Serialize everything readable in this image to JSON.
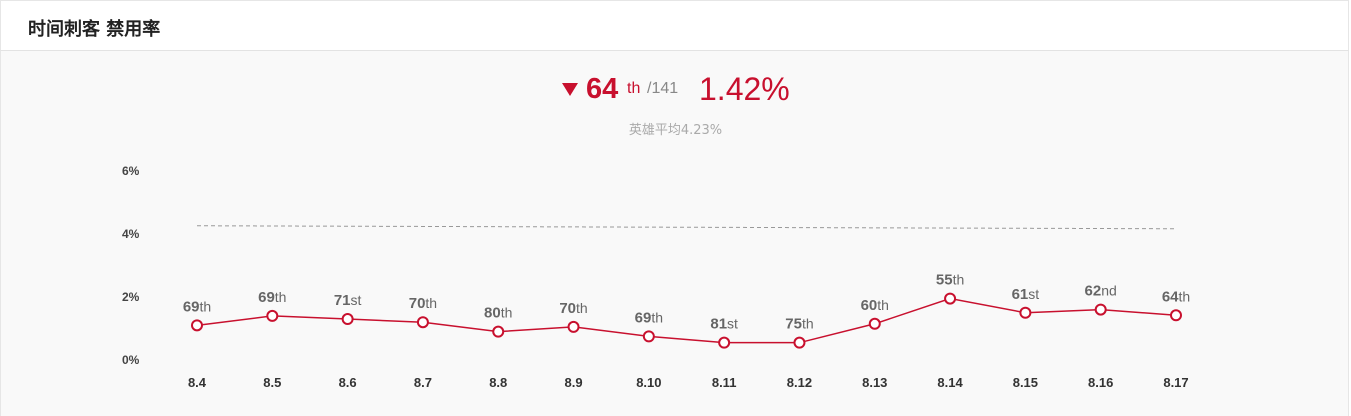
{
  "header": {
    "title": "时间刺客 禁用率"
  },
  "summary": {
    "trend": "down",
    "rank": "64",
    "rank_suffix": "th",
    "rank_total": "/141",
    "rate": "1.42%",
    "average_label": "英雄平均4.23%"
  },
  "colors": {
    "accent": "#c8102e",
    "average_line": "#999999"
  },
  "chart_data": {
    "type": "line",
    "title": "",
    "xlabel": "",
    "ylabel": "",
    "categories": [
      "8.4",
      "8.5",
      "8.6",
      "8.7",
      "8.8",
      "8.9",
      "8.10",
      "8.11",
      "8.12",
      "8.13",
      "8.14",
      "8.15",
      "8.16",
      "8.17"
    ],
    "series": [
      {
        "values": [
          1.1,
          1.4,
          1.3,
          1.2,
          0.9,
          1.05,
          0.75,
          0.55,
          0.55,
          1.15,
          1.95,
          1.5,
          1.6,
          1.42
        ],
        "rank_labels": [
          "69",
          "69",
          "71",
          "70",
          "80",
          "70",
          "69",
          "81",
          "75",
          "60",
          "55",
          "61",
          "62",
          "64"
        ],
        "rank_suffixes": [
          "th",
          "th",
          "st",
          "th",
          "th",
          "th",
          "th",
          "st",
          "th",
          "th",
          "th",
          "st",
          "nd",
          "th"
        ]
      }
    ],
    "reference_line": {
      "value": 4.23,
      "style": "dashed"
    },
    "yticks": [
      "0%",
      "2%",
      "4%",
      "6%"
    ],
    "ytick_values": [
      0,
      2,
      4,
      6
    ],
    "ylim": [
      0,
      6
    ],
    "grid": false,
    "legend": "none"
  }
}
